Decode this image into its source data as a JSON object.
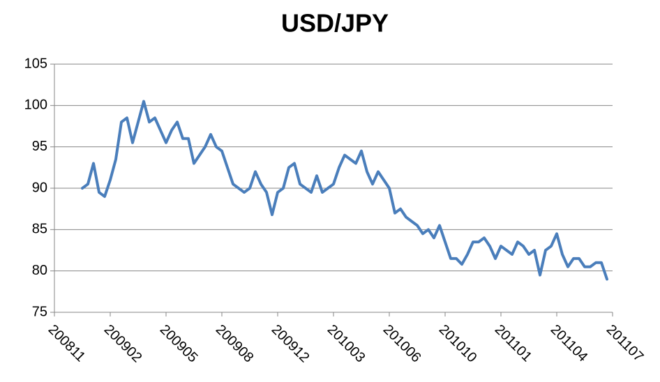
{
  "chart_data": {
    "type": "line",
    "title": "USD/JPY",
    "categories": [
      "200811",
      null,
      null,
      null,
      null,
      null,
      null,
      null,
      null,
      null,
      "200902",
      null,
      null,
      null,
      null,
      null,
      null,
      null,
      null,
      null,
      "200905",
      null,
      null,
      null,
      null,
      null,
      null,
      null,
      null,
      null,
      "200908",
      null,
      null,
      null,
      null,
      null,
      null,
      null,
      null,
      null,
      "200912",
      null,
      null,
      null,
      null,
      null,
      null,
      null,
      null,
      null,
      "201003",
      null,
      null,
      null,
      null,
      null,
      null,
      null,
      null,
      null,
      "201006",
      null,
      null,
      null,
      null,
      null,
      null,
      null,
      null,
      null,
      "201010",
      null,
      null,
      null,
      null,
      null,
      null,
      null,
      null,
      null,
      "201101",
      null,
      null,
      null,
      null,
      null,
      null,
      null,
      null,
      null,
      "201104",
      null,
      null,
      null,
      null,
      null,
      null,
      null,
      null,
      null,
      "201107"
    ],
    "series": [
      {
        "name": "USD/JPY",
        "color": "#4a7ebb",
        "values": [
          null,
          null,
          null,
          null,
          null,
          90,
          90.5,
          93,
          89.5,
          89,
          91,
          93.5,
          98,
          98.5,
          95.5,
          98,
          100.5,
          98,
          98.5,
          97,
          95.5,
          97,
          98,
          96,
          96,
          93,
          94,
          95,
          96.5,
          95,
          94.5,
          92.5,
          90.5,
          90,
          89.5,
          90,
          92,
          90.5,
          89.5,
          86.8,
          89.5,
          90,
          92.5,
          93,
          90.5,
          90,
          89.5,
          91.5,
          89.5,
          90,
          90.5,
          92.5,
          94,
          93.5,
          93,
          94.5,
          92,
          90.5,
          92,
          91,
          90,
          87,
          87.5,
          86.5,
          86,
          85.5,
          84.5,
          85,
          84,
          85.5,
          83.5,
          81.5,
          81.5,
          80.8,
          82,
          83.5,
          83.5,
          84,
          83,
          81.5,
          83,
          82.5,
          82,
          83.5,
          83,
          82,
          82.5,
          79.5,
          82.5,
          83,
          84.5,
          82,
          80.5,
          81.5,
          81.5,
          80.5,
          80.5,
          81,
          81,
          79,
          null
        ]
      }
    ],
    "ylim": [
      75,
      105
    ],
    "yticks": [
      75,
      80,
      85,
      90,
      95,
      100,
      105
    ],
    "grid": true
  }
}
